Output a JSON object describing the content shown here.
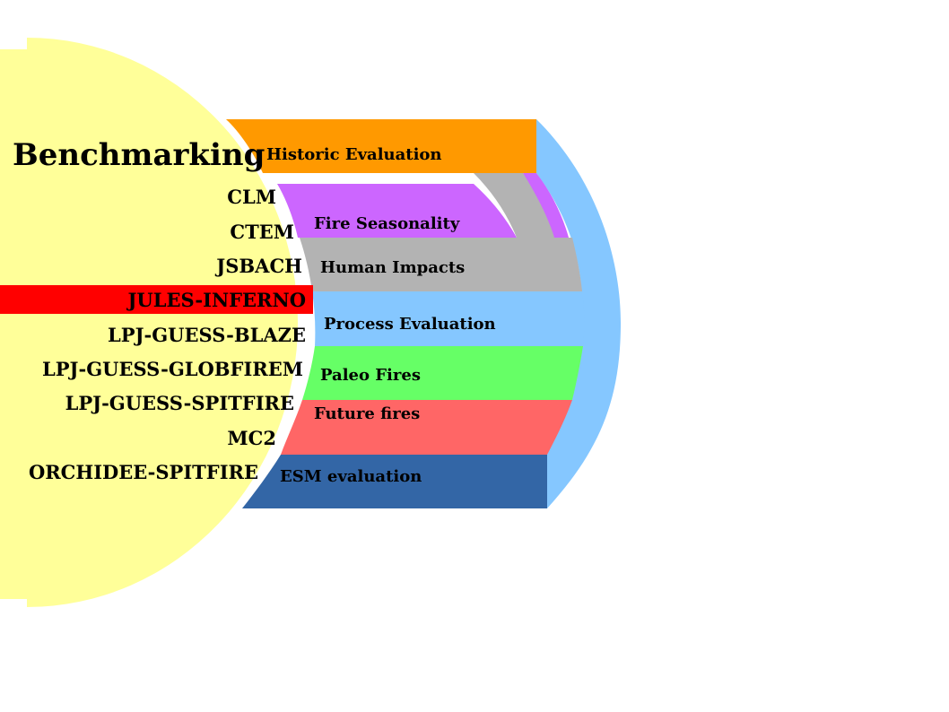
{
  "title": "Benchmarking",
  "models": [
    {
      "label": "CLM",
      "highlighted": false
    },
    {
      "label": "CTEM",
      "highlighted": false
    },
    {
      "label": "JSBACH",
      "highlighted": false
    },
    {
      "label": "JULES-INFERNO",
      "highlighted": true
    },
    {
      "label": "LPJ-GUESS-BLAZE",
      "highlighted": false
    },
    {
      "label": "LPJ-GUESS-GLOBFIREM",
      "highlighted": false
    },
    {
      "label": "LPJ-GUESS-SPITFIRE",
      "highlighted": false
    },
    {
      "label": "MC2",
      "highlighted": false
    },
    {
      "label": "ORCHIDEE-SPITFIRE",
      "highlighted": false
    }
  ],
  "bands": [
    {
      "label": "Historic Evaluation",
      "color": "#ff9900"
    },
    {
      "label": "Fire Seasonality",
      "color": "#cc66ff"
    },
    {
      "label": "Human Impacts",
      "color": "#b3b3b3"
    },
    {
      "label": "Process Evaluation",
      "color": "#85c7ff"
    },
    {
      "label": "Paleo Fires",
      "color": "#66ff66"
    },
    {
      "label": "Future fires",
      "color": "#ff6666"
    },
    {
      "label": "ESM evaluation",
      "color": "#3366a6"
    }
  ],
  "colors": {
    "circle_fill": "#ffff99",
    "highlight": "#ff0000",
    "connector_arc": "#85c7ff",
    "connector_historic_outer": "#cc66ff",
    "connector_historic_inner": "#b3b3b3",
    "text": "#000000",
    "background": "#ffffff"
  }
}
